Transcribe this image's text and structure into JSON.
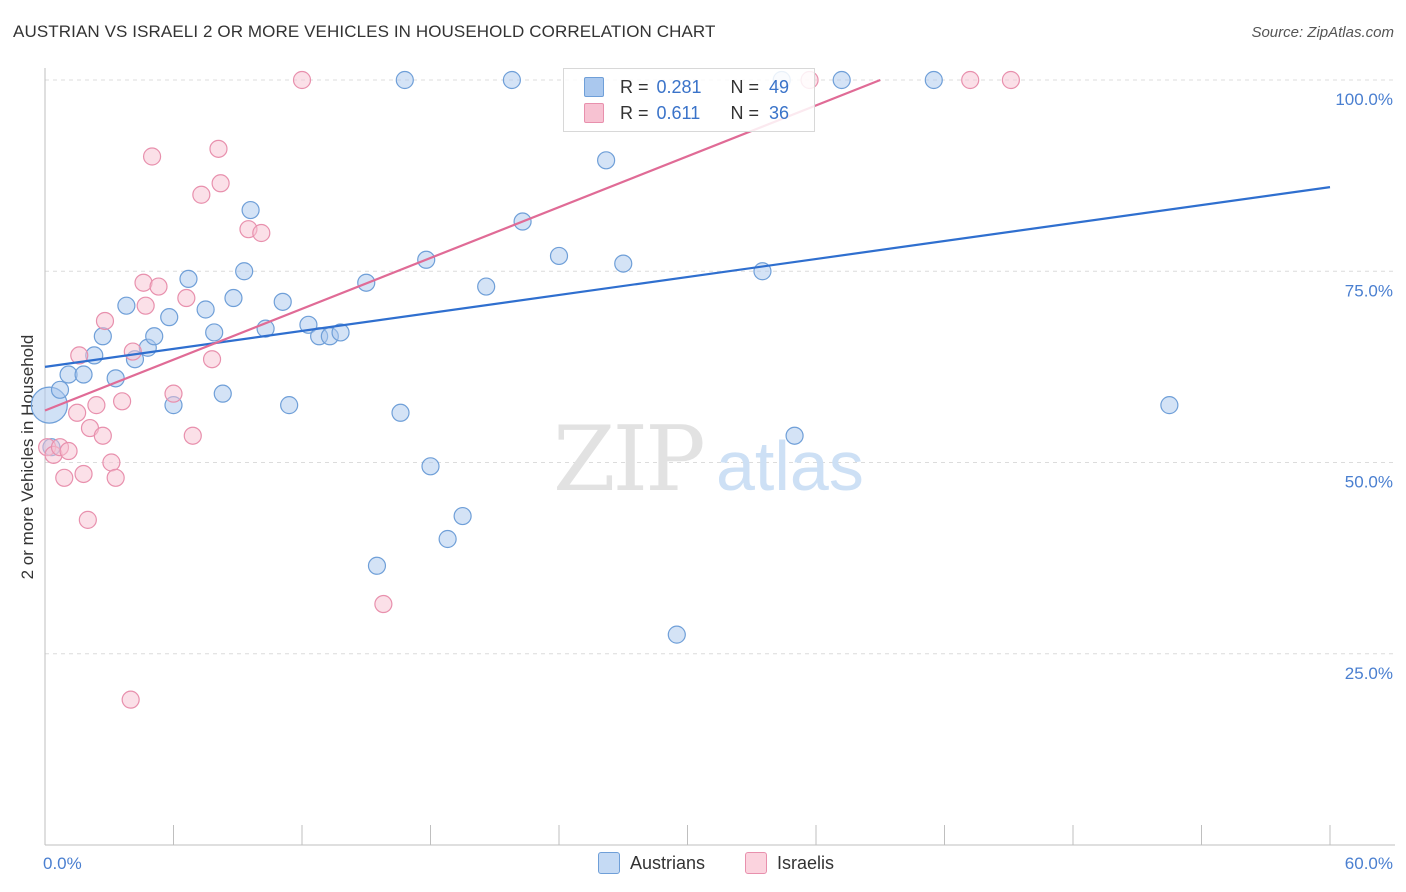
{
  "title": "AUSTRIAN VS ISRAELI 2 OR MORE VEHICLES IN HOUSEHOLD CORRELATION CHART",
  "source": "Source: ZipAtlas.com",
  "watermark": {
    "zip": "ZIP",
    "atlas": "atlas"
  },
  "legend": {
    "r_label": "R =",
    "n_label": "N =",
    "rows": [
      {
        "r": "0.281",
        "n": "49",
        "color": "#aac8ee",
        "border": "#6f9fd8"
      },
      {
        "r": "0.611",
        "n": "36",
        "color": "#f7c2d2",
        "border": "#e890ad"
      }
    ]
  },
  "bottom_legend": [
    {
      "label": "Austrians",
      "color": "#c5daf4",
      "border": "#6f9fd8"
    },
    {
      "label": "Israelis",
      "color": "#fbd3de",
      "border": "#e890ad"
    }
  ],
  "chart_data": {
    "type": "scatter",
    "title": "AUSTRIAN VS ISRAELI 2 OR MORE VEHICLES IN HOUSEHOLD CORRELATION CHART",
    "xlabel": "",
    "ylabel": "2 or more Vehicles in Household",
    "xlim": [
      0,
      60
    ],
    "ylim": [
      0,
      100
    ],
    "x_tick_labels": [
      "0.0%",
      "60.0%"
    ],
    "y_tick_labels": [
      "100.0%",
      "75.0%",
      "50.0%",
      "25.0%"
    ],
    "y_ticks": [
      100,
      75,
      50,
      25
    ],
    "grid": true,
    "legend_position": "top-center",
    "series": [
      {
        "name": "Austrians",
        "color": "#6f9fd8",
        "fill": "#aac8ee",
        "line_color": "#2f6fcf",
        "r": 0.281,
        "n": 49,
        "trend": {
          "x": [
            0,
            60
          ],
          "y": [
            62.5,
            86.0
          ]
        },
        "points": [
          [
            0.2,
            57.5
          ],
          [
            0.7,
            59.5
          ],
          [
            1.1,
            61.5
          ],
          [
            1.8,
            61.5
          ],
          [
            2.3,
            64.0
          ],
          [
            2.7,
            66.5
          ],
          [
            3.3,
            61.0
          ],
          [
            4.2,
            63.5
          ],
          [
            3.8,
            70.5
          ],
          [
            4.8,
            65.0
          ],
          [
            5.1,
            66.5
          ],
          [
            5.8,
            69.0
          ],
          [
            6.0,
            57.5
          ],
          [
            6.7,
            74.0
          ],
          [
            7.5,
            70.0
          ],
          [
            7.9,
            67.0
          ],
          [
            8.3,
            59.0
          ],
          [
            8.8,
            71.5
          ],
          [
            9.3,
            75.0
          ],
          [
            9.6,
            83.0
          ],
          [
            10.3,
            67.5
          ],
          [
            11.1,
            71.0
          ],
          [
            11.4,
            57.5
          ],
          [
            12.3,
            68.0
          ],
          [
            12.8,
            66.5
          ],
          [
            13.3,
            66.5
          ],
          [
            13.8,
            67.0
          ],
          [
            15.0,
            73.5
          ],
          [
            15.5,
            36.5
          ],
          [
            16.6,
            56.5
          ],
          [
            16.8,
            100.0
          ],
          [
            17.8,
            76.5
          ],
          [
            18.0,
            49.5
          ],
          [
            18.8,
            40.0
          ],
          [
            19.5,
            43.0
          ],
          [
            20.6,
            73.0
          ],
          [
            21.8,
            100.0
          ],
          [
            22.3,
            81.5
          ],
          [
            24.0,
            77.0
          ],
          [
            26.2,
            89.5
          ],
          [
            27.0,
            76.0
          ],
          [
            29.5,
            27.5
          ],
          [
            33.5,
            75.0
          ],
          [
            34.4,
            100.0
          ],
          [
            35.0,
            53.5
          ],
          [
            37.2,
            100.0
          ],
          [
            41.5,
            100.0
          ],
          [
            52.5,
            57.5
          ],
          [
            0.3,
            52.0
          ]
        ]
      },
      {
        "name": "Israelis",
        "color": "#e890ad",
        "fill": "#f7c2d2",
        "line_color": "#e06b96",
        "r": 0.611,
        "n": 36,
        "trend": {
          "x": [
            0,
            39
          ],
          "y": [
            56.8,
            100.0
          ]
        },
        "points": [
          [
            0.1,
            52.0
          ],
          [
            0.4,
            51.0
          ],
          [
            0.7,
            52.0
          ],
          [
            0.9,
            48.0
          ],
          [
            1.1,
            51.5
          ],
          [
            1.5,
            56.5
          ],
          [
            1.6,
            64.0
          ],
          [
            1.8,
            48.5
          ],
          [
            2.0,
            42.5
          ],
          [
            2.1,
            54.5
          ],
          [
            2.4,
            57.5
          ],
          [
            2.7,
            53.5
          ],
          [
            2.8,
            68.5
          ],
          [
            3.1,
            50.0
          ],
          [
            3.3,
            48.0
          ],
          [
            3.6,
            58.0
          ],
          [
            4.0,
            19.0
          ],
          [
            4.1,
            64.5
          ],
          [
            4.6,
            73.5
          ],
          [
            4.7,
            70.5
          ],
          [
            5.0,
            90.0
          ],
          [
            5.3,
            73.0
          ],
          [
            6.0,
            59.0
          ],
          [
            6.6,
            71.5
          ],
          [
            6.9,
            53.5
          ],
          [
            7.3,
            85.0
          ],
          [
            7.8,
            63.5
          ],
          [
            8.1,
            91.0
          ],
          [
            8.2,
            86.5
          ],
          [
            9.5,
            80.5
          ],
          [
            10.1,
            80.0
          ],
          [
            12.0,
            100.0
          ],
          [
            15.8,
            31.5
          ],
          [
            35.7,
            100.0
          ],
          [
            43.2,
            100.0
          ],
          [
            45.1,
            100.0
          ]
        ]
      }
    ]
  }
}
